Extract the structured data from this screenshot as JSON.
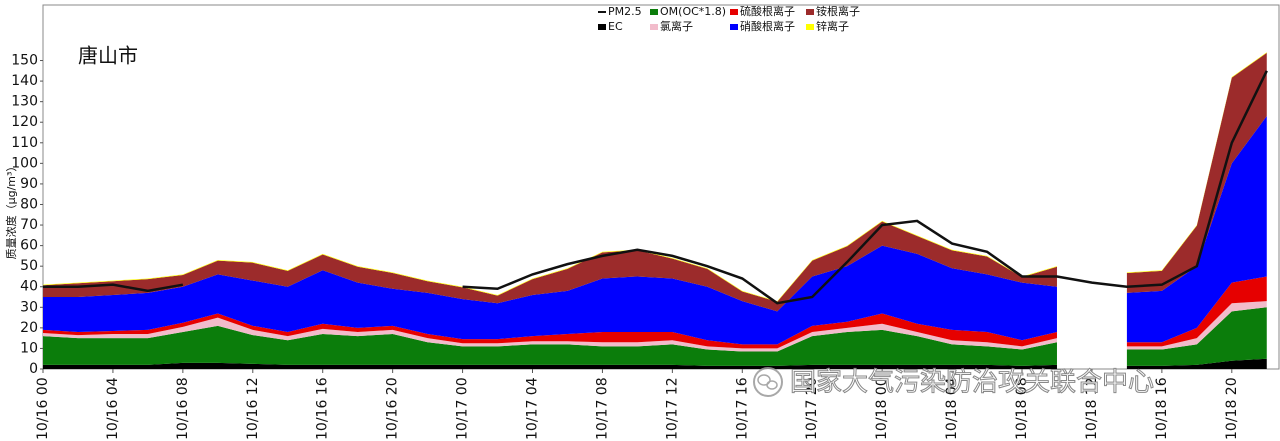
{
  "chart_data": {
    "type": "stacked_area",
    "title": "唐山市",
    "y_label": "质量浓度（μg/m³）",
    "watermark": "国家大气污染防治攻关联合中心",
    "x": [
      0,
      2,
      4,
      6,
      8,
      10,
      12,
      14,
      16,
      18,
      20,
      22,
      24,
      26,
      28,
      30,
      32,
      34,
      36,
      38,
      40,
      42,
      44,
      46,
      48,
      50,
      52,
      54,
      56,
      58,
      60,
      62,
      64,
      66,
      68,
      70
    ],
    "xlim": [
      0,
      70.7
    ],
    "xticks": [
      {
        "value": 0,
        "label": "10/16 00"
      },
      {
        "value": 4,
        "label": "10/16 04"
      },
      {
        "value": 8,
        "label": "10/16 08"
      },
      {
        "value": 12,
        "label": "10/16 12"
      },
      {
        "value": 16,
        "label": "10/16 16"
      },
      {
        "value": 20,
        "label": "10/16 20"
      },
      {
        "value": 24,
        "label": "10/17 00"
      },
      {
        "value": 28,
        "label": "10/17 04"
      },
      {
        "value": 32,
        "label": "10/17 08"
      },
      {
        "value": 36,
        "label": "10/17 12"
      },
      {
        "value": 40,
        "label": "10/17 16"
      },
      {
        "value": 44,
        "label": "10/17 20"
      },
      {
        "value": 48,
        "label": "10/18 00"
      },
      {
        "value": 52,
        "label": "10/18 04"
      },
      {
        "value": 56,
        "label": "10/18 08"
      },
      {
        "value": 60,
        "label": "10/18 12"
      },
      {
        "value": 64,
        "label": "10/18 16"
      },
      {
        "value": 68,
        "label": "10/18 20"
      }
    ],
    "ylim": [
      0,
      177
    ],
    "yticks": [
      0,
      10,
      20,
      30,
      40,
      50,
      60,
      70,
      80,
      90,
      100,
      110,
      120,
      130,
      140,
      150
    ],
    "series": [
      {
        "name": "EC",
        "color": "#000000",
        "values": [
          2,
          2,
          2,
          2,
          3,
          3,
          2.5,
          2,
          2,
          2,
          2,
          2,
          2,
          2,
          2,
          2,
          2,
          2,
          2,
          1.5,
          1.5,
          1.5,
          2,
          2,
          2,
          2,
          2,
          2,
          1.5,
          2,
          null,
          1.5,
          1.5,
          2,
          4,
          5
        ]
      },
      {
        "name": "OM(OC*1.8)",
        "color": "#0b7d0b",
        "values": [
          14,
          13,
          13,
          13,
          15,
          18,
          14,
          12,
          15,
          14,
          15,
          11,
          9,
          9,
          10,
          10,
          9,
          9,
          10,
          8,
          7,
          7,
          14,
          16,
          17,
          14,
          10,
          9,
          8,
          11,
          null,
          8,
          8,
          10,
          24,
          25
        ]
      },
      {
        "name": "氯离子",
        "color": "#f2bccb",
        "values": [
          1.5,
          1.5,
          2,
          2,
          2.5,
          4,
          2.5,
          2,
          2.5,
          2,
          2,
          2,
          1.5,
          1.5,
          1.5,
          1.5,
          2,
          2,
          2,
          1.5,
          1.5,
          1.5,
          2,
          2,
          3,
          2,
          2,
          2,
          1.5,
          2,
          null,
          1.5,
          1.5,
          3,
          4,
          3
        ]
      },
      {
        "name": "硫酸根离子",
        "color": "#e60000",
        "values": [
          1.5,
          1.5,
          1.5,
          2,
          2,
          2,
          2,
          2,
          2.5,
          2,
          2,
          2,
          2,
          2,
          2.5,
          3.5,
          5,
          5,
          4,
          3,
          2,
          2,
          3,
          3,
          5,
          4,
          5,
          5,
          3,
          3,
          null,
          2,
          2,
          5,
          10,
          12
        ]
      },
      {
        "name": "硝酸根离子",
        "color": "#0000ff",
        "values": [
          16,
          17,
          17.5,
          18,
          17.5,
          19,
          22,
          22,
          26,
          22,
          18,
          20,
          19.5,
          17.5,
          20,
          21,
          26,
          27,
          26,
          26,
          21,
          16,
          24,
          27,
          33,
          34,
          30,
          28,
          28,
          22,
          null,
          24,
          25,
          30,
          58,
          78
        ]
      },
      {
        "name": "铵根离子",
        "color": "#9c2b2b",
        "values": [
          5.7,
          6.7,
          6.7,
          6.7,
          5.7,
          6.7,
          8.7,
          7.7,
          7.7,
          7.7,
          7.7,
          5.7,
          5.7,
          3.7,
          7.7,
          10.7,
          12.7,
          12.7,
          9.7,
          8.7,
          4.7,
          4.7,
          7.7,
          9.7,
          11.7,
          8.7,
          8.7,
          8.7,
          2.7,
          9.7,
          null,
          9.7,
          9.7,
          19.7,
          41.7,
          30.7
        ]
      },
      {
        "name": "锌离子",
        "color": "#ffff00",
        "values": [
          0.3,
          0.3,
          0.3,
          0.3,
          0.3,
          0.3,
          0.3,
          0.3,
          0.3,
          0.3,
          0.3,
          0.3,
          0.3,
          0.3,
          0.3,
          0.3,
          0.3,
          0.3,
          0.3,
          0.3,
          0.3,
          0.3,
          0.3,
          0.3,
          0.3,
          0.3,
          0.3,
          0.3,
          0.3,
          0.3,
          null,
          0.3,
          0.3,
          0.3,
          0.3,
          0.3
        ]
      }
    ],
    "line": {
      "name": "PM2.5",
      "color": "#111111",
      "values": [
        40,
        40,
        41,
        38,
        41,
        null,
        null,
        null,
        null,
        null,
        null,
        null,
        40,
        39,
        46,
        51,
        55,
        58,
        55,
        50,
        44,
        32,
        35,
        52,
        70,
        72,
        61,
        57,
        45,
        45,
        42,
        40,
        41,
        50,
        110,
        145
      ]
    }
  }
}
